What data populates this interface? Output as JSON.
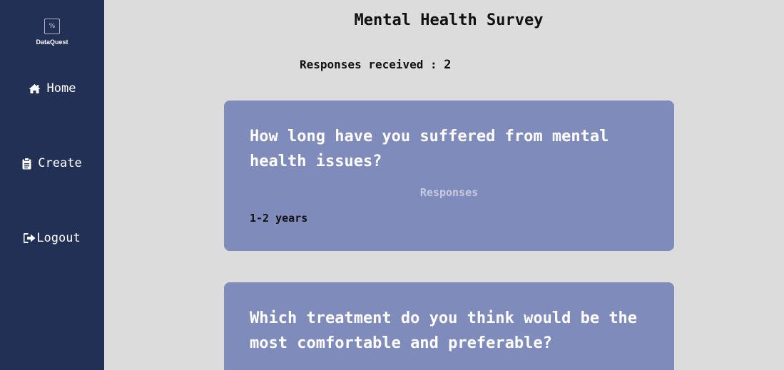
{
  "app": {
    "logo_mark": "%",
    "name": "DataQuest"
  },
  "sidebar": {
    "items": [
      {
        "label": "Home",
        "icon": "home-icon"
      },
      {
        "label": "Create",
        "icon": "clipboard-icon"
      },
      {
        "label": "Logout",
        "icon": "sign-out-icon"
      }
    ]
  },
  "survey": {
    "title": "Mental Health Survey",
    "responses_label": "Responses received : ",
    "responses_count": "2"
  },
  "questions": [
    {
      "text": "How long have you suffered from mental health issues?",
      "responses_heading": "Responses",
      "answers": [
        "1-2 years"
      ]
    },
    {
      "text": "Which treatment do you think would be the most comfortable and preferable?"
    }
  ],
  "colors": {
    "sidebar_bg": "#223056",
    "page_bg": "#dcdcdc",
    "card_bg": "#7f8bba",
    "question_text": "#ffffff",
    "responses_heading": "#c6cce0"
  }
}
